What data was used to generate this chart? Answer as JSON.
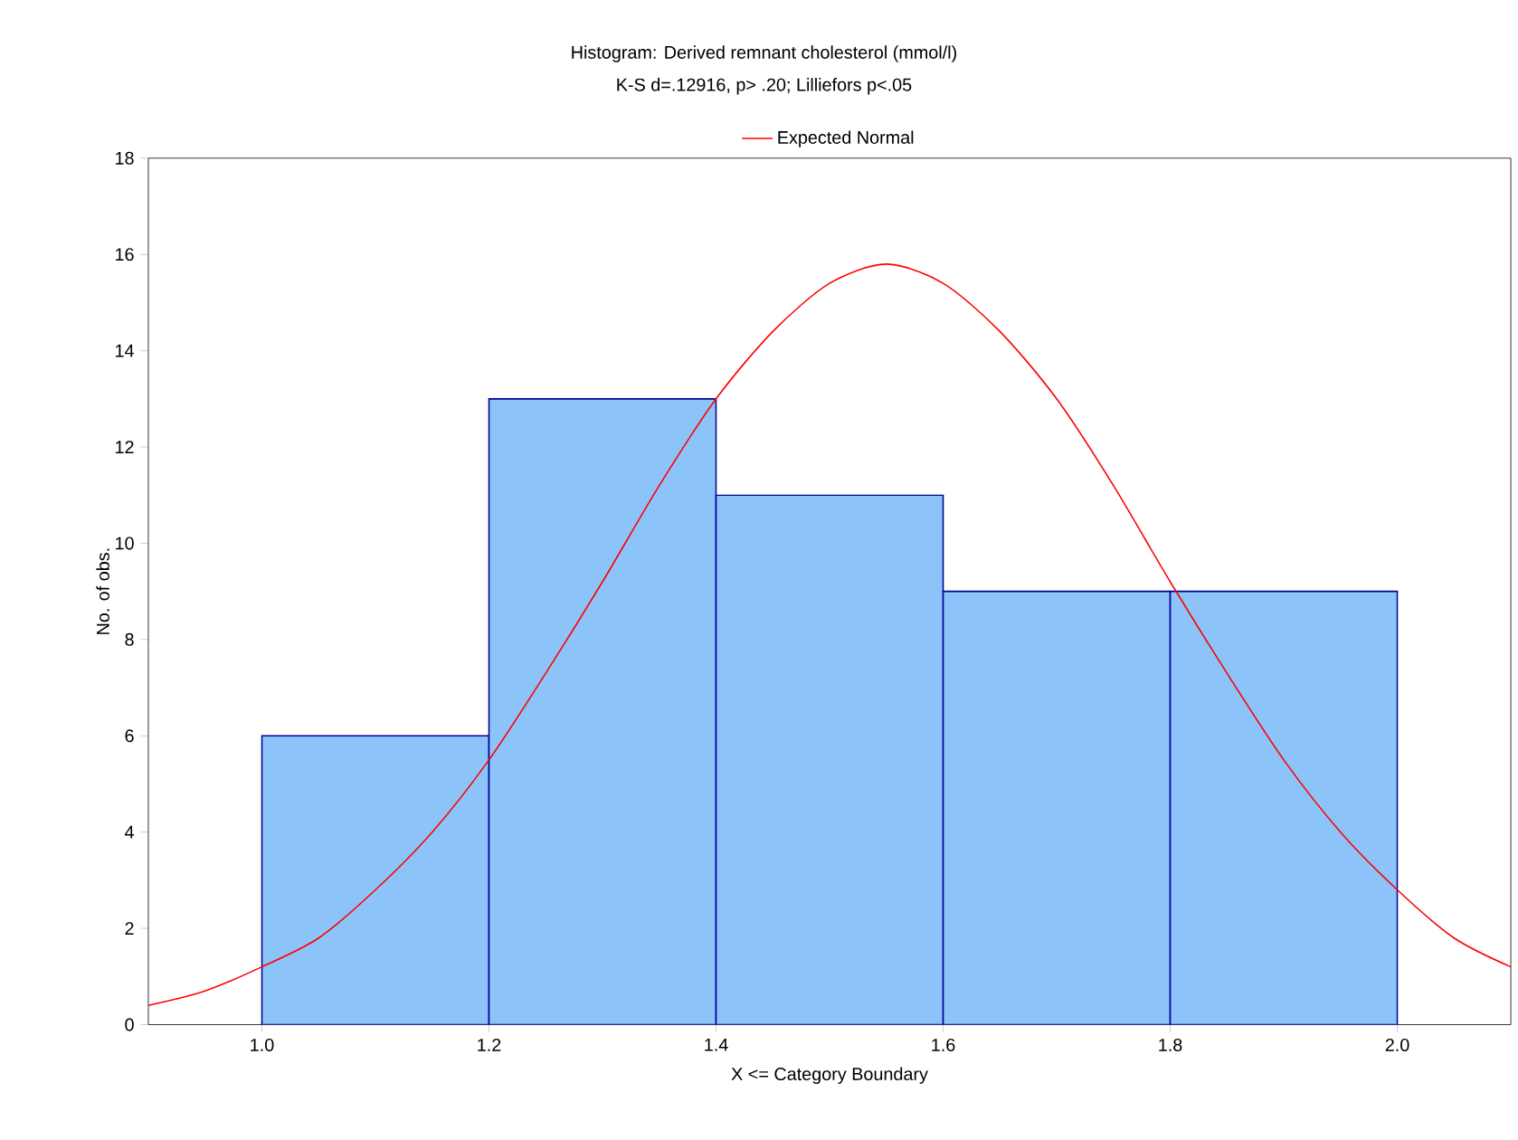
{
  "chart_data": {
    "type": "histogram",
    "title": "Histogram: Derived remnant cholesterol (mmol/l)",
    "subtitle": "K-S d=.12916, p> .20; Lilliefors p<.05",
    "xlabel": "X <= Category Boundary",
    "ylabel": "No. of obs.",
    "bins": [
      1.0,
      1.2,
      1.4,
      1.6,
      1.8,
      2.0
    ],
    "series": [
      {
        "color": "#8cc4fa",
        "values": [
          6,
          13,
          11,
          9,
          9
        ]
      },
      {
        "type": "line",
        "name": "Expected Normal",
        "color": "#ff0000",
        "x": [
          0.9,
          0.95,
          1.0,
          1.05,
          1.1,
          1.15,
          1.2,
          1.25,
          1.3,
          1.35,
          1.4,
          1.45,
          1.5,
          1.55,
          1.6,
          1.65,
          1.7,
          1.75,
          1.8,
          1.85,
          1.9,
          1.95,
          2.0,
          2.05,
          2.1
        ],
        "values": [
          0.4,
          0.7,
          1.2,
          1.8,
          2.8,
          4.0,
          5.5,
          7.3,
          9.2,
          11.2,
          13.0,
          14.4,
          15.4,
          15.8,
          15.4,
          14.4,
          13.0,
          11.2,
          9.2,
          7.3,
          5.5,
          4.0,
          2.8,
          1.8,
          1.2
        ]
      }
    ],
    "xlim": [
      0.9,
      2.1
    ],
    "ylim": [
      0,
      18
    ],
    "xticks": [
      {
        "value": 1.0,
        "label": "1.0"
      },
      {
        "value": 1.2,
        "label": "1.2"
      },
      {
        "value": 1.4,
        "label": "1.4"
      },
      {
        "value": 1.6,
        "label": "1.6"
      },
      {
        "value": 1.8,
        "label": "1.8"
      },
      {
        "value": 2.0,
        "label": "2.0"
      }
    ],
    "yticks": [
      0,
      2,
      4,
      6,
      8,
      10,
      12,
      14,
      16,
      18
    ],
    "grid": false,
    "legend": "top"
  }
}
